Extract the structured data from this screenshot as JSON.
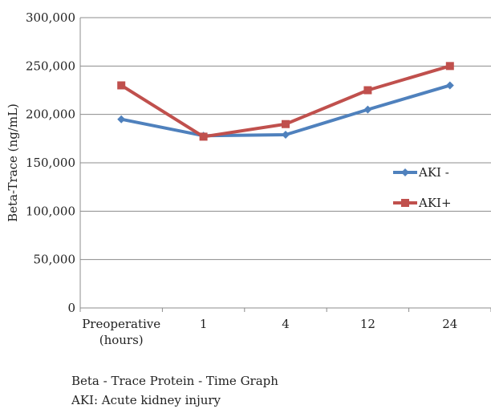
{
  "chart_data": {
    "type": "line",
    "categories": [
      "Preoperative\n(hours)",
      "1",
      "4",
      "12",
      "24"
    ],
    "series": [
      {
        "name": "AKI -",
        "values": [
          195000,
          178000,
          179000,
          205000,
          230000
        ],
        "color": "#4f81bd",
        "marker": "diamond"
      },
      {
        "name": "AKI+",
        "values": [
          230000,
          177000,
          190000,
          225000,
          250000
        ],
        "color": "#c0504d",
        "marker": "square"
      }
    ],
    "title": "",
    "xlabel": "",
    "ylabel": "Beta-Trace (ng/mL)",
    "ylim": [
      0,
      300000
    ],
    "yticks": [
      0,
      50000,
      100000,
      150000,
      200000,
      250000,
      300000
    ],
    "ytick_labels": [
      "0",
      "50,000",
      "100,000",
      "150,000",
      "200,000",
      "250,000",
      "300,000"
    ],
    "grid": "horizontal",
    "legend": "right"
  },
  "caption": {
    "line1": "Beta  - Trace Protein -  Time Graph",
    "line2": "AKI: Acute kidney injury"
  }
}
